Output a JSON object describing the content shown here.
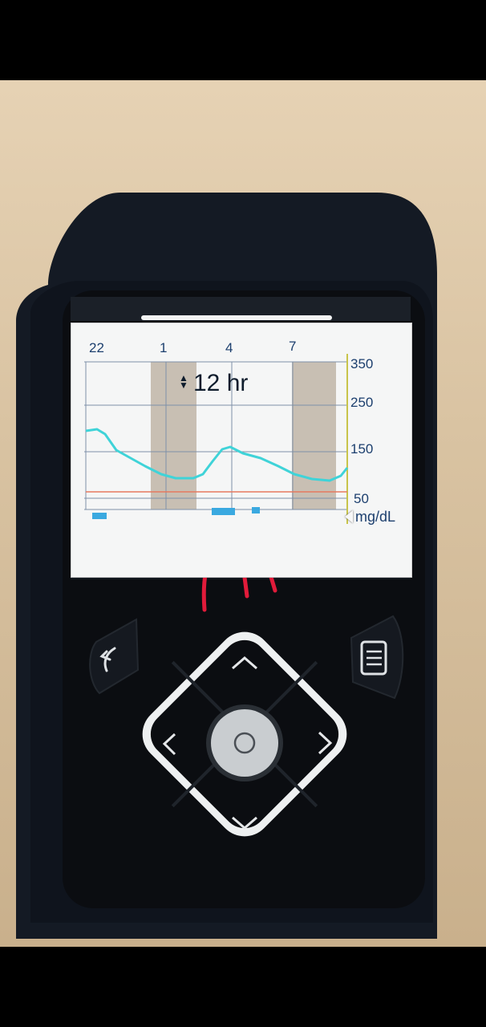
{
  "device": {
    "type": "insulin-pump",
    "display": {
      "hour_labels": [
        "22",
        "1",
        "4",
        "7"
      ],
      "y_labels": [
        "350",
        "250",
        "150",
        "50"
      ],
      "range_label": "12 hr",
      "unit_label": "mg/dL",
      "y_range": [
        50,
        350
      ],
      "trace_color": "#3fd3d8",
      "low_limit_line_color": "#e6795f",
      "highlight_bar_color": "#3aa9e0"
    },
    "buttons": [
      "back",
      "menu",
      "up",
      "down",
      "left",
      "right",
      "select"
    ]
  },
  "annotation": {
    "arrow_color": "#e11b3a",
    "arrow_count": 3
  }
}
